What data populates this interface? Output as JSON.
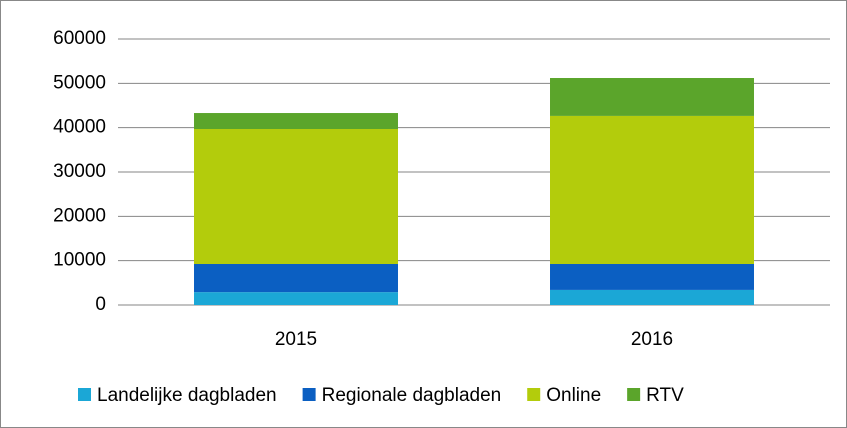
{
  "chart_data": {
    "type": "stacked-bar",
    "categories": [
      "2015",
      "2016"
    ],
    "series": [
      {
        "name": "Landelijke dagbladen",
        "color": "#1ba7d6",
        "values": [
          2900,
          3400
        ]
      },
      {
        "name": "Regionale dagbladen",
        "color": "#0b5fc2",
        "values": [
          6350,
          5850
        ]
      },
      {
        "name": "Online",
        "color": "#b3cc0c",
        "values": [
          30450,
          33400
        ]
      },
      {
        "name": "RTV",
        "color": "#5ba52b",
        "values": [
          3600,
          8550
        ]
      }
    ],
    "ylim": [
      0,
      60000
    ],
    "yticks": [
      0,
      10000,
      20000,
      30000,
      40000,
      50000,
      60000
    ],
    "grid": true,
    "legend": "bottom"
  }
}
